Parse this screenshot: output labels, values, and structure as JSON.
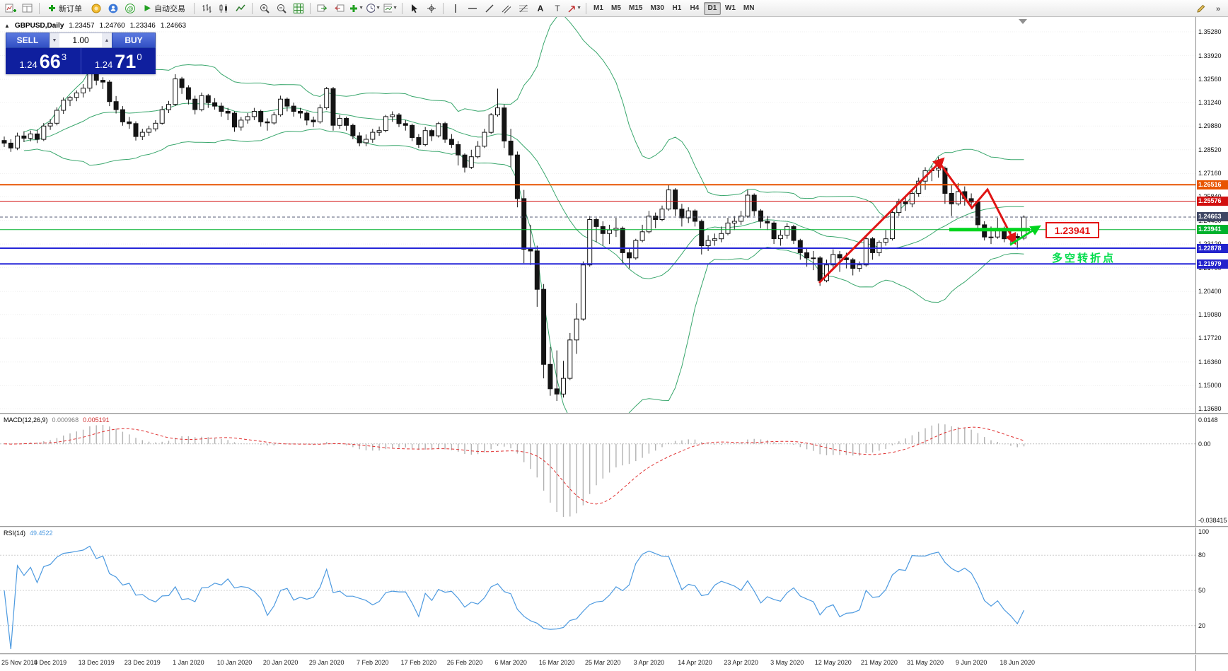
{
  "toolbar": {
    "new_order_label": "新订单",
    "autotrade_label": "自动交易",
    "items": [
      {
        "type": "icon",
        "name": "new-chart-icon"
      },
      {
        "type": "icon",
        "name": "profiles-icon"
      },
      {
        "type": "sep"
      },
      {
        "type": "button",
        "name": "new-order-button",
        "icon": "order-plus-icon",
        "label": "新订单"
      },
      {
        "type": "icon",
        "name": "market-icon"
      },
      {
        "type": "icon",
        "name": "community-icon"
      },
      {
        "type": "icon",
        "name": "signals-icon"
      },
      {
        "type": "button",
        "name": "autotrade-button",
        "icon": "autotrade-play-icon",
        "label": "自动交易"
      },
      {
        "type": "sep"
      },
      {
        "type": "icon",
        "name": "bar-chart-icon"
      },
      {
        "type": "icon",
        "name": "candlestick-icon"
      },
      {
        "type": "icon",
        "name": "line-chart-icon"
      },
      {
        "type": "sep"
      },
      {
        "type": "icon",
        "name": "zoom-in-icon"
      },
      {
        "type": "icon",
        "name": "zoom-out-icon"
      },
      {
        "type": "icon",
        "name": "tile-windows-icon"
      },
      {
        "type": "sep"
      },
      {
        "type": "icon",
        "name": "auto-scroll-icon"
      },
      {
        "type": "icon",
        "name": "chart-shift-icon"
      },
      {
        "type": "icon",
        "name": "indicators-icon",
        "dropdown": true
      },
      {
        "type": "icon",
        "name": "periods-icon",
        "dropdown": true
      },
      {
        "type": "icon",
        "name": "templates-icon",
        "dropdown": true
      },
      {
        "type": "sep"
      },
      {
        "type": "icon",
        "name": "cursor-icon"
      },
      {
        "type": "icon",
        "name": "crosshair-icon"
      },
      {
        "type": "sep"
      },
      {
        "type": "icon",
        "name": "vertical-line-icon"
      },
      {
        "type": "icon",
        "name": "horizontal-line-icon"
      },
      {
        "type": "icon",
        "name": "trendline-icon"
      },
      {
        "type": "icon",
        "name": "channel-icon"
      },
      {
        "type": "icon",
        "name": "fibonacci-icon"
      },
      {
        "type": "icon",
        "name": "text-icon"
      },
      {
        "type": "icon",
        "name": "label-icon"
      },
      {
        "type": "icon",
        "name": "shapes-icon",
        "dropdown": true
      },
      {
        "type": "sep"
      },
      {
        "type": "tf",
        "label": "M1"
      },
      {
        "type": "tf",
        "label": "M5"
      },
      {
        "type": "tf",
        "label": "M15"
      },
      {
        "type": "tf",
        "label": "M30"
      },
      {
        "type": "tf",
        "label": "H1"
      },
      {
        "type": "tf",
        "label": "H4"
      },
      {
        "type": "tf",
        "label": "D1",
        "selected": true
      },
      {
        "type": "tf",
        "label": "W1"
      },
      {
        "type": "tf",
        "label": "MN"
      },
      {
        "type": "spacer"
      },
      {
        "type": "icon",
        "name": "edit-icon"
      },
      {
        "type": "icon",
        "name": "overflow-icon"
      }
    ]
  },
  "symbol_header": {
    "name": "GBPUSD,Daily",
    "open": "1.23457",
    "high": "1.24760",
    "low": "1.23346",
    "close": "1.24663"
  },
  "trade_panel": {
    "sell_label": "SELL",
    "buy_label": "BUY",
    "volume": "1.00",
    "sell_price_main": "1.24",
    "sell_price_big": "66",
    "sell_price_sup": "3",
    "buy_price_main": "1.24",
    "buy_price_big": "71",
    "buy_price_sup": "0"
  },
  "price_axis": {
    "ticks": [
      "1.35280",
      "1.33920",
      "1.32560",
      "1.31240",
      "1.29880",
      "1.28520",
      "1.27160",
      "1.25840",
      "1.24480",
      "1.23120",
      "1.21760",
      "1.20400",
      "1.19080",
      "1.17720",
      "1.16360",
      "1.15000",
      "1.13680"
    ],
    "badges": [
      {
        "value": "1.26516",
        "color": "#e85400"
      },
      {
        "value": "1.25576",
        "color": "#d21010"
      },
      {
        "value": "1.24663",
        "color": "#3e4664"
      },
      {
        "value": "1.23941",
        "color": "#00b22d"
      },
      {
        "value": "1.22878",
        "color": "#2222cc"
      },
      {
        "value": "1.21979",
        "color": "#2222cc"
      }
    ]
  },
  "hlines": [
    {
      "price": 1.26516,
      "color": "#e85400",
      "width": 2
    },
    {
      "price": 1.25576,
      "color": "#d21010",
      "width": 1
    },
    {
      "price": 1.23941,
      "color": "#00b22d",
      "width": 1
    },
    {
      "price": 1.22878,
      "color": "#2525d8",
      "width": 2
    },
    {
      "price": 1.21979,
      "color": "#2525d8",
      "width": 2
    }
  ],
  "current_price": 1.24663,
  "annotations": {
    "price_callout": "1.23941",
    "turning_point_label": "多空转折点"
  },
  "macd_panel": {
    "label": "MACD(12,26,9)",
    "value_main": "0.000968",
    "value_signal": "0.005191",
    "axis_top": "0.0148",
    "axis_zero": "0.00",
    "axis_bottom": "-0.038415"
  },
  "rsi_panel": {
    "label": "RSI(14)",
    "value": "49.4522",
    "levels": [
      "100",
      "80",
      "50",
      "20"
    ]
  },
  "date_axis": [
    "25 Nov 2019",
    "4 Dec 2019",
    "13 Dec 2019",
    "23 Dec 2019",
    "1 Jan 2020",
    "10 Jan 2020",
    "20 Jan 2020",
    "29 Jan 2020",
    "7 Feb 2020",
    "17 Feb 2020",
    "26 Feb 2020",
    "6 Mar 2020",
    "16 Mar 2020",
    "25 Mar 2020",
    "3 Apr 2020",
    "14 Apr 2020",
    "23 Apr 2020",
    "3 May 2020",
    "12 May 2020",
    "21 May 2020",
    "31 May 2020",
    "9 Jun 2020",
    "18 Jun 2020"
  ],
  "chart_data": {
    "type": "candlestick",
    "symbol": "GBPUSD",
    "timeframe": "Daily",
    "title": "GBPUSD,Daily",
    "price_range": [
      1.1368,
      1.3528
    ],
    "indicators": {
      "bollinger": {
        "period": 20,
        "deviation": 2,
        "color": "#3aa76d"
      },
      "macd": {
        "fast": 12,
        "slow": 26,
        "signal": 9,
        "current_main": 0.000968,
        "current_signal": 0.005191
      },
      "rsi": {
        "period": 14,
        "current": 49.4522
      }
    },
    "candles": [
      [
        1.2905,
        1.2928,
        1.2868,
        1.289
      ],
      [
        1.289,
        1.2912,
        1.284,
        1.2862
      ],
      [
        1.2862,
        1.295,
        1.285,
        1.2931
      ],
      [
        1.2931,
        1.2958,
        1.2896,
        1.2918
      ],
      [
        1.2918,
        1.2962,
        1.29,
        1.2943
      ],
      [
        1.2943,
        1.2968,
        1.289,
        1.2912
      ],
      [
        1.2912,
        1.3005,
        1.2902,
        1.2988
      ],
      [
        1.2988,
        1.3028,
        1.2966,
        1.3004
      ],
      [
        1.3004,
        1.3095,
        1.2992,
        1.3078
      ],
      [
        1.3078,
        1.3152,
        1.3058,
        1.3136
      ],
      [
        1.3136,
        1.316,
        1.3102,
        1.3152
      ],
      [
        1.3152,
        1.3192,
        1.313,
        1.3178
      ],
      [
        1.3178,
        1.3228,
        1.3152,
        1.3205
      ],
      [
        1.3205,
        1.344,
        1.3185,
        1.333
      ],
      [
        1.333,
        1.3348,
        1.3222,
        1.325
      ],
      [
        1.325,
        1.3268,
        1.32,
        1.324
      ],
      [
        1.324,
        1.3252,
        1.3102,
        1.3128
      ],
      [
        1.3128,
        1.316,
        1.306,
        1.3082
      ],
      [
        1.3082,
        1.3102,
        1.299,
        1.3012
      ],
      [
        1.3012,
        1.304,
        1.2972,
        1.3002
      ],
      [
        1.3002,
        1.3015,
        1.2905,
        1.2928
      ],
      [
        1.2928,
        1.2972,
        1.2908,
        1.2952
      ],
      [
        1.2952,
        1.299,
        1.2932,
        1.2972
      ],
      [
        1.2972,
        1.3022,
        1.2958,
        1.3004
      ],
      [
        1.3004,
        1.3102,
        1.2996,
        1.3082
      ],
      [
        1.3082,
        1.3132,
        1.3062,
        1.3112
      ],
      [
        1.3112,
        1.3285,
        1.3102,
        1.3258
      ],
      [
        1.3258,
        1.327,
        1.3172,
        1.3208
      ],
      [
        1.3208,
        1.3222,
        1.3112,
        1.3142
      ],
      [
        1.3142,
        1.3162,
        1.3055,
        1.3082
      ],
      [
        1.3082,
        1.318,
        1.3072,
        1.3162
      ],
      [
        1.3162,
        1.3172,
        1.3092,
        1.3122
      ],
      [
        1.3122,
        1.3148,
        1.3082,
        1.3102
      ],
      [
        1.3102,
        1.3122,
        1.3042,
        1.3072
      ],
      [
        1.3072,
        1.3092,
        1.3022,
        1.3062
      ],
      [
        1.3062,
        1.3072,
        1.2955,
        1.2982
      ],
      [
        1.2982,
        1.304,
        1.2962,
        1.3022
      ],
      [
        1.3022,
        1.3062,
        1.3002,
        1.3042
      ],
      [
        1.3042,
        1.3092,
        1.3022,
        1.3072
      ],
      [
        1.3072,
        1.3082,
        1.2985,
        1.3012
      ],
      [
        1.3012,
        1.3032,
        1.2962,
        1.3006
      ],
      [
        1.3006,
        1.307,
        1.2996,
        1.3052
      ],
      [
        1.3052,
        1.3162,
        1.3042,
        1.3142
      ],
      [
        1.3142,
        1.3152,
        1.3072,
        1.3102
      ],
      [
        1.3102,
        1.3122,
        1.3042,
        1.3072
      ],
      [
        1.3072,
        1.3092,
        1.3032,
        1.3062
      ],
      [
        1.3062,
        1.3072,
        1.2992,
        1.3022
      ],
      [
        1.3022,
        1.3042,
        1.2982,
        1.3012
      ],
      [
        1.3012,
        1.3112,
        1.3002,
        1.3092
      ],
      [
        1.3092,
        1.3212,
        1.3082,
        1.3202
      ],
      [
        1.3202,
        1.3212,
        1.2962,
        1.2992
      ],
      [
        1.2992,
        1.3052,
        1.2972,
        1.3032
      ],
      [
        1.3032,
        1.3042,
        1.2962,
        1.2992
      ],
      [
        1.2992,
        1.3002,
        1.2912,
        1.2932
      ],
      [
        1.2932,
        1.2952,
        1.2872,
        1.2892
      ],
      [
        1.2892,
        1.294,
        1.2872,
        1.2912
      ],
      [
        1.2912,
        1.2972,
        1.2892,
        1.2952
      ],
      [
        1.2952,
        1.2985,
        1.2932,
        1.2962
      ],
      [
        1.2962,
        1.3052,
        1.2952,
        1.3042
      ],
      [
        1.3042,
        1.3072,
        1.3012,
        1.3052
      ],
      [
        1.3052,
        1.3062,
        1.2982,
        1.3002
      ],
      [
        1.3002,
        1.3022,
        1.2962,
        1.2992
      ],
      [
        1.2992,
        1.3002,
        1.2902,
        1.2922
      ],
      [
        1.2922,
        1.2942,
        1.2862,
        1.2882
      ],
      [
        1.2882,
        1.2982,
        1.2872,
        1.2962
      ],
      [
        1.2962,
        1.2972,
        1.2902,
        1.2932
      ],
      [
        1.2932,
        1.3012,
        1.2922,
        1.3002
      ],
      [
        1.3002,
        1.3012,
        1.2892,
        1.2912
      ],
      [
        1.2912,
        1.2942,
        1.2862,
        1.2882
      ],
      [
        1.2882,
        1.2902,
        1.2762,
        1.2822
      ],
      [
        1.2822,
        1.2832,
        1.2722,
        1.2752
      ],
      [
        1.2752,
        1.2852,
        1.2742,
        1.2812
      ],
      [
        1.2812,
        1.2902,
        1.2802,
        1.2872
      ],
      [
        1.2872,
        1.2972,
        1.2862,
        1.2952
      ],
      [
        1.2952,
        1.3062,
        1.2942,
        1.3052
      ],
      [
        1.3052,
        1.3202,
        1.3042,
        1.3092
      ],
      [
        1.3092,
        1.3112,
        1.2862,
        1.2902
      ],
      [
        1.2902,
        1.2972,
        1.2752,
        1.2822
      ],
      [
        1.2822,
        1.2842,
        1.2522,
        1.2572
      ],
      [
        1.2572,
        1.2622,
        1.2202,
        1.2282
      ],
      [
        1.2282,
        1.2422,
        1.2192,
        1.2272
      ],
      [
        1.2272,
        1.2302,
        1.1952,
        1.2052
      ],
      [
        1.2052,
        1.2082,
        1.1542,
        1.1622
      ],
      [
        1.1622,
        1.1722,
        1.1442,
        1.1482
      ],
      [
        1.1482,
        1.1702,
        1.1412,
        1.1452
      ],
      [
        1.1452,
        1.1642,
        1.1432,
        1.1542
      ],
      [
        1.1542,
        1.1802,
        1.1532,
        1.1762
      ],
      [
        1.1762,
        1.1972,
        1.1682,
        1.1882
      ],
      [
        1.1882,
        1.2212,
        1.1872,
        1.2192
      ],
      [
        1.2192,
        1.2472,
        1.2182,
        1.2452
      ],
      [
        1.2452,
        1.2462,
        1.2322,
        1.2412
      ],
      [
        1.2412,
        1.2442,
        1.2302,
        1.2372
      ],
      [
        1.2372,
        1.2422,
        1.2312,
        1.2392
      ],
      [
        1.2392,
        1.2462,
        1.2352,
        1.2402
      ],
      [
        1.2402,
        1.2412,
        1.2202,
        1.2262
      ],
      [
        1.2262,
        1.2292,
        1.2172,
        1.2232
      ],
      [
        1.2232,
        1.2342,
        1.2222,
        1.2332
      ],
      [
        1.2332,
        1.2422,
        1.2322,
        1.2382
      ],
      [
        1.2382,
        1.2502,
        1.2372,
        1.2472
      ],
      [
        1.2472,
        1.2492,
        1.2402,
        1.2452
      ],
      [
        1.2452,
        1.2532,
        1.2442,
        1.2512
      ],
      [
        1.2512,
        1.2652,
        1.2502,
        1.2622
      ],
      [
        1.2622,
        1.2632,
        1.2472,
        1.2512
      ],
      [
        1.2512,
        1.2542,
        1.2412,
        1.2462
      ],
      [
        1.2462,
        1.2522,
        1.2432,
        1.2502
      ],
      [
        1.2502,
        1.2512,
        1.2412,
        1.2442
      ],
      [
        1.2442,
        1.2452,
        1.2252,
        1.2302
      ],
      [
        1.2302,
        1.2362,
        1.2272,
        1.2332
      ],
      [
        1.2332,
        1.2372,
        1.2302,
        1.2342
      ],
      [
        1.2342,
        1.2412,
        1.2322,
        1.2372
      ],
      [
        1.2372,
        1.2462,
        1.2362,
        1.2432
      ],
      [
        1.2432,
        1.2472,
        1.2392,
        1.2442
      ],
      [
        1.2442,
        1.2502,
        1.2422,
        1.2472
      ],
      [
        1.2472,
        1.2622,
        1.2462,
        1.2592
      ],
      [
        1.2592,
        1.2602,
        1.2472,
        1.2502
      ],
      [
        1.2502,
        1.2512,
        1.2402,
        1.2442
      ],
      [
        1.2442,
        1.2472,
        1.2392,
        1.2432
      ],
      [
        1.2432,
        1.2442,
        1.2312,
        1.2342
      ],
      [
        1.2342,
        1.2392,
        1.2302,
        1.2362
      ],
      [
        1.2362,
        1.2432,
        1.2342,
        1.2412
      ],
      [
        1.2412,
        1.2422,
        1.2312,
        1.2332
      ],
      [
        1.2332,
        1.2342,
        1.2222,
        1.2262
      ],
      [
        1.2262,
        1.2292,
        1.2182,
        1.2232
      ],
      [
        1.2232,
        1.2272,
        1.2162,
        1.2232
      ],
      [
        1.2232,
        1.2242,
        1.2072,
        1.2102
      ],
      [
        1.2102,
        1.2222,
        1.2092,
        1.2192
      ],
      [
        1.2192,
        1.2282,
        1.2162,
        1.2252
      ],
      [
        1.2252,
        1.2272,
        1.2152,
        1.2232
      ],
      [
        1.2232,
        1.2262,
        1.2172,
        1.2222
      ],
      [
        1.2222,
        1.2232,
        1.2132,
        1.2172
      ],
      [
        1.2172,
        1.2212,
        1.2152,
        1.2192
      ],
      [
        1.2192,
        1.2362,
        1.2182,
        1.2342
      ],
      [
        1.2342,
        1.2352,
        1.2222,
        1.2262
      ],
      [
        1.2262,
        1.2332,
        1.2242,
        1.2322
      ],
      [
        1.2322,
        1.2392,
        1.2302,
        1.2342
      ],
      [
        1.2342,
        1.2502,
        1.2332,
        1.2492
      ],
      [
        1.2492,
        1.2572,
        1.2472,
        1.2552
      ],
      [
        1.2552,
        1.2582,
        1.2502,
        1.2542
      ],
      [
        1.2542,
        1.2622,
        1.2522,
        1.2602
      ],
      [
        1.2602,
        1.2692,
        1.2582,
        1.2672
      ],
      [
        1.2672,
        1.2752,
        1.2622,
        1.2732
      ],
      [
        1.2732,
        1.2762,
        1.2672,
        1.2736
      ],
      [
        1.2736,
        1.2812,
        1.2692,
        1.2746
      ],
      [
        1.2746,
        1.2756,
        1.2542,
        1.2602
      ],
      [
        1.2602,
        1.2652,
        1.2472,
        1.2542
      ],
      [
        1.2542,
        1.2662,
        1.2532,
        1.2612
      ],
      [
        1.2612,
        1.2642,
        1.2532,
        1.2572
      ],
      [
        1.2572,
        1.2602,
        1.2512,
        1.2552
      ],
      [
        1.2552,
        1.2562,
        1.2392,
        1.2422
      ],
      [
        1.2422,
        1.2442,
        1.2332,
        1.2352
      ],
      [
        1.2352,
        1.2412,
        1.2312,
        1.2352
      ],
      [
        1.2352,
        1.2462,
        1.2342,
        1.2402
      ],
      [
        1.2402,
        1.2412,
        1.2322,
        1.2342
      ],
      [
        1.2342,
        1.2392,
        1.2302,
        1.2355
      ],
      [
        1.2355,
        1.2372,
        1.2282,
        1.2346
      ],
      [
        1.23457,
        1.2476,
        1.23346,
        1.24663
      ]
    ]
  }
}
